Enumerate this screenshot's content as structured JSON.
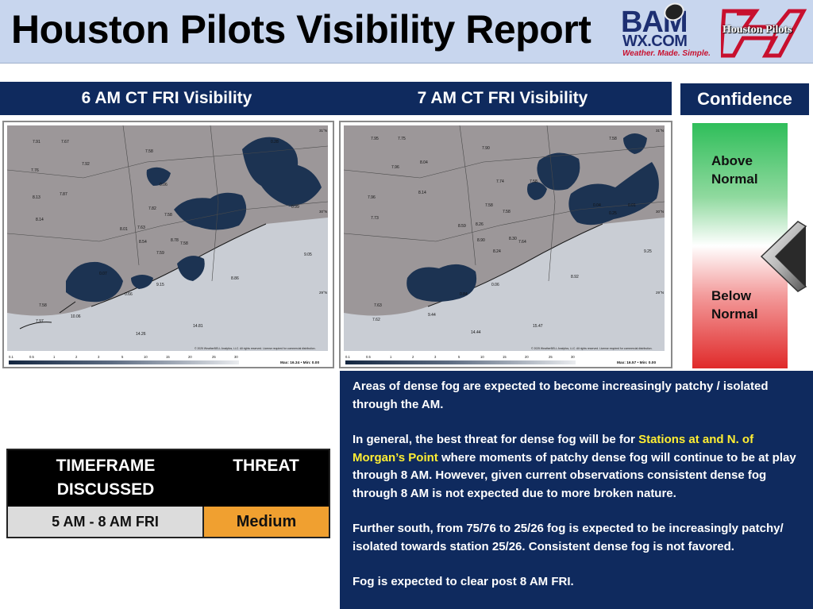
{
  "header": {
    "title": "Houston Pilots Visibility Report",
    "bam_logo": {
      "top": "BAM",
      "sub": "WX.COM",
      "tagline": "Weather. Made. Simple."
    },
    "houston_pilots_logo": "Houston Pilots"
  },
  "panels": {
    "left_title": "6 AM CT FRI Visibility",
    "right_title": "7 AM CT FRI Visibility",
    "confidence_title": "Confidence"
  },
  "maps": {
    "left": {
      "credit": "© 2025 WeatherBELL Analytics, LLC. All rights reserved. License required for commercial distribution.",
      "legend_ticks": [
        "0.1",
        "0.5",
        "1",
        "2",
        "3",
        "5",
        "10",
        "15",
        "20",
        "25",
        "30"
      ],
      "max_min": "Max: 16.34 • Min: 0.00",
      "lat_labels": [
        "31°N",
        "30°N",
        "29°N"
      ],
      "station_values": [
        "7.91",
        "7.67",
        "7.58",
        "7.92",
        "7.76",
        "0.28",
        "8.13",
        "7.87",
        "0.06",
        "8.14",
        "7.82",
        "7.58",
        "0.99",
        "8.01",
        "7.63",
        "8.54",
        "8.78",
        "7.58",
        "9.05",
        "7.59",
        "0.07",
        "9.15",
        "8.86",
        "0.66",
        "7.58",
        "10.06",
        "7.97",
        "14.81",
        "14.26"
      ]
    },
    "right": {
      "credit": "© 2025 WeatherBELL Analytics, LLC. All rights reserved. License required for commercial distribution.",
      "legend_ticks": [
        "0.1",
        "0.5",
        "1",
        "2",
        "3",
        "5",
        "10",
        "15",
        "20",
        "25",
        "30"
      ],
      "max_min": "Max: 16.57 • Min: 0.00",
      "lat_labels": [
        "31°N",
        "30°N",
        "29°N"
      ],
      "station_values": [
        "7.95",
        "7.75",
        "7.58",
        "7.90",
        "8.04",
        "7.96",
        "7.74",
        "7.58",
        "8.14",
        "7.96",
        "0.04",
        "0.01",
        "7.58",
        "7.58",
        "0.25",
        "7.73",
        "8.59",
        "8.26",
        "8.90",
        "8.30",
        "7.64",
        "8.24",
        "9.25",
        "0.06",
        "8.92",
        "0.84",
        "7.63",
        "9.44",
        "7.62",
        "15.47",
        "14.44"
      ]
    }
  },
  "confidence": {
    "above_label": "Above Normal",
    "below_label": "Below Normal",
    "level": "Below Normal"
  },
  "threat_table": {
    "header_timeframe": "TIMEFRAME DISCUSSED",
    "header_threat": "THREAT",
    "timeframe": "5 AM - 8 AM FRI",
    "threat": "Medium",
    "threat_color": "#f0a030"
  },
  "discussion": {
    "p1": "Areas of dense fog are expected to become increasingly patchy / isolated through the AM.",
    "p2_before": "In general, the best threat for dense fog will be for ",
    "p2_highlight": "Stations at and N. of Morgan’s Point",
    "p2_after": " where moments of patchy dense fog will continue to be at play through 8 AM.  However, given current observations consistent dense fog through 8 AM is not expected due to more broken nature.",
    "p3": "Further south, from 75/76 to 25/26 fog is expected to be increasingly patchy/ isolated towards station 25/26.  Consistent dense fog is not favored.",
    "p4": "Fog is expected to clear post 8 AM FRI."
  },
  "colors": {
    "navy": "#0f2a5e",
    "header_bg": "#c8d6ee",
    "fog_dark": "#1c3352",
    "land": "#9c9799",
    "water": "#c9cdd4",
    "highlight": "#ffee33"
  }
}
